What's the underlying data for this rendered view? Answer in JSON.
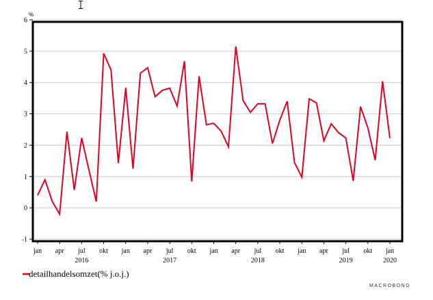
{
  "chart_data": {
    "type": "line",
    "y_unit_label": "%",
    "ylim": [
      -1,
      6
    ],
    "y_ticks": [
      -1,
      0,
      1,
      2,
      3,
      4,
      5,
      6
    ],
    "x_start": "2016-01",
    "grid": true,
    "month_labels": [
      {
        "label": "jan",
        "index": 0
      },
      {
        "label": "apr",
        "index": 3
      },
      {
        "label": "jul",
        "index": 6
      },
      {
        "label": "okt",
        "index": 9
      },
      {
        "label": "jan",
        "index": 12
      },
      {
        "label": "apr",
        "index": 15
      },
      {
        "label": "jul",
        "index": 18
      },
      {
        "label": "okt",
        "index": 21
      },
      {
        "label": "jan",
        "index": 24
      },
      {
        "label": "apr",
        "index": 27
      },
      {
        "label": "jul",
        "index": 30
      },
      {
        "label": "okt",
        "index": 33
      },
      {
        "label": "jan",
        "index": 36
      },
      {
        "label": "apr",
        "index": 39
      },
      {
        "label": "jul",
        "index": 42
      },
      {
        "label": "okt",
        "index": 45
      },
      {
        "label": "jan",
        "index": 48
      }
    ],
    "year_labels": [
      {
        "label": "2016",
        "index": 6
      },
      {
        "label": "2017",
        "index": 18
      },
      {
        "label": "2018",
        "index": 30
      },
      {
        "label": "2019",
        "index": 42
      },
      {
        "label": "2020",
        "index": 48
      }
    ],
    "series": [
      {
        "name": "detailhandelsomzet(% j.o.j.)",
        "color": "#e3001b",
        "values": [
          0.4,
          0.9,
          0.2,
          -0.2,
          2.43,
          0.57,
          2.23,
          1.2,
          0.2,
          4.93,
          4.4,
          1.43,
          3.83,
          1.25,
          4.3,
          4.47,
          3.55,
          3.75,
          3.82,
          3.25,
          4.68,
          0.84,
          4.2,
          2.65,
          2.7,
          2.45,
          1.95,
          5.15,
          3.42,
          3.05,
          3.32,
          3.32,
          2.05,
          2.8,
          3.4,
          1.45,
          0.98,
          3.48,
          3.35,
          2.14,
          2.68,
          2.4,
          2.23,
          0.86,
          3.23,
          2.55,
          1.52,
          4.04,
          2.22
        ]
      }
    ]
  },
  "legend": {
    "label": "detailhandelsomzet(% j.o.j.)",
    "color": "#e3001b"
  },
  "footer": {
    "brand": "MACROBOND"
  }
}
